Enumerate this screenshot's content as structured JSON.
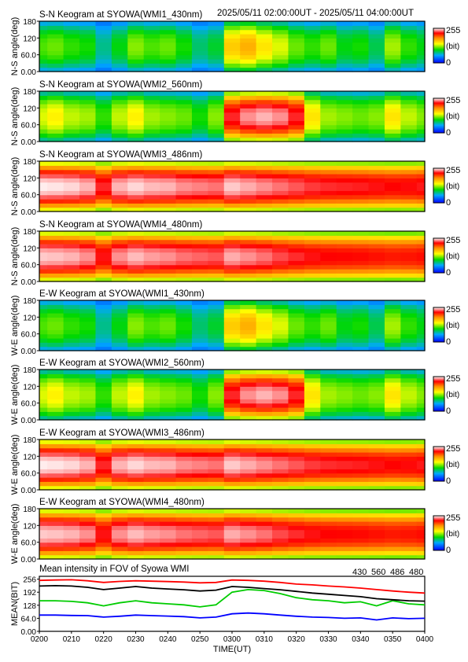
{
  "header": {
    "title": "S-N Keogram at SYOWA(WMI1_430nm)",
    "range": "2025/05/11 02:00:00UT - 2025/05/11 04:00:00UT"
  },
  "colorbar": {
    "max_label": "255",
    "unit_label": "(bit)",
    "min_label": "0"
  },
  "keogram_y_ticks": [
    "180",
    "120",
    "60.0",
    "0.00"
  ],
  "chart_data": [
    {
      "type": "heatmap",
      "id": "sn1",
      "title": "S-N Keogram at SYOWA(WMI1_430nm)",
      "ylabel": "N-S angle(deg)",
      "ylim": [
        0,
        180
      ],
      "palette": "rainbow",
      "x": [
        0,
        5,
        10,
        15,
        20,
        25,
        30,
        35,
        40,
        45,
        50,
        55,
        60,
        65,
        70,
        75,
        80,
        85,
        90,
        95,
        100,
        105,
        110,
        115,
        120
      ],
      "values": [
        110,
        115,
        105,
        100,
        75,
        95,
        120,
        110,
        115,
        100,
        80,
        90,
        160,
        170,
        150,
        135,
        115,
        105,
        115,
        95,
        100,
        85,
        125,
        105,
        95
      ]
    },
    {
      "type": "heatmap",
      "id": "sn2",
      "title": "S-N Keogram at SYOWA(WMI2_560nm)",
      "ylabel": "N-S angle(deg)",
      "ylim": [
        0,
        180
      ],
      "palette": "rainbow",
      "x": [
        0,
        5,
        10,
        15,
        20,
        25,
        30,
        35,
        40,
        45,
        50,
        55,
        60,
        65,
        70,
        75,
        80,
        85,
        90,
        95,
        100,
        105,
        110,
        115,
        120
      ],
      "values": [
        135,
        145,
        130,
        125,
        105,
        130,
        145,
        125,
        120,
        115,
        100,
        120,
        225,
        240,
        245,
        240,
        225,
        150,
        125,
        120,
        115,
        120,
        150,
        130,
        120
      ]
    },
    {
      "type": "heatmap",
      "id": "sn3",
      "title": "S-N Keogram at SYOWA(WMI3_486nm)",
      "ylabel": "N-S angle(deg)",
      "ylim": [
        0,
        180
      ],
      "palette": "rainbow",
      "x": [
        0,
        5,
        10,
        15,
        20,
        25,
        30,
        35,
        40,
        45,
        50,
        55,
        60,
        65,
        70,
        75,
        80,
        85,
        90,
        95,
        100,
        105,
        110,
        115,
        120
      ],
      "values": [
        253,
        252,
        250,
        245,
        225,
        245,
        250,
        246,
        245,
        240,
        238,
        236,
        248,
        244,
        240,
        236,
        232,
        228,
        226,
        225,
        224,
        222,
        220,
        221,
        223
      ]
    },
    {
      "type": "heatmap",
      "id": "sn4",
      "title": "S-N Keogram at SYOWA(WMI4_480nm)",
      "ylabel": "N-S angle(deg)",
      "ylim": [
        0,
        180
      ],
      "palette": "rainbow",
      "x": [
        0,
        5,
        10,
        15,
        20,
        25,
        30,
        35,
        40,
        45,
        50,
        55,
        60,
        65,
        70,
        75,
        80,
        85,
        90,
        95,
        100,
        105,
        110,
        115,
        120
      ],
      "values": [
        248,
        247,
        245,
        240,
        222,
        240,
        246,
        242,
        240,
        236,
        234,
        232,
        244,
        240,
        236,
        230,
        226,
        222,
        220,
        219,
        218,
        216,
        214,
        215,
        217
      ]
    },
    {
      "type": "heatmap",
      "id": "ew1",
      "title": "E-W Keogram at SYOWA(WMI1_430nm)",
      "ylabel": "W-E angle(deg)",
      "ylim": [
        0,
        180
      ],
      "palette": "rainbow",
      "x": [
        0,
        5,
        10,
        15,
        20,
        25,
        30,
        35,
        40,
        45,
        50,
        55,
        60,
        65,
        70,
        75,
        80,
        85,
        90,
        95,
        100,
        105,
        110,
        115,
        120
      ],
      "values": [
        110,
        115,
        105,
        100,
        75,
        95,
        120,
        110,
        115,
        100,
        80,
        90,
        160,
        170,
        150,
        135,
        115,
        105,
        115,
        95,
        100,
        85,
        125,
        105,
        95
      ]
    },
    {
      "type": "heatmap",
      "id": "ew2",
      "title": "E-W Keogram at SYOWA(WMI2_560nm)",
      "ylabel": "W-E angle(deg)",
      "ylim": [
        0,
        180
      ],
      "palette": "rainbow",
      "x": [
        0,
        5,
        10,
        15,
        20,
        25,
        30,
        35,
        40,
        45,
        50,
        55,
        60,
        65,
        70,
        75,
        80,
        85,
        90,
        95,
        100,
        105,
        110,
        115,
        120
      ],
      "values": [
        135,
        145,
        130,
        125,
        105,
        130,
        145,
        125,
        120,
        115,
        100,
        120,
        225,
        240,
        245,
        240,
        225,
        150,
        125,
        120,
        115,
        120,
        150,
        130,
        120
      ]
    },
    {
      "type": "heatmap",
      "id": "ew3",
      "title": "E-W Keogram at SYOWA(WMI3_486nm)",
      "ylabel": "W-E angle(deg)",
      "ylim": [
        0,
        180
      ],
      "palette": "rainbow",
      "x": [
        0,
        5,
        10,
        15,
        20,
        25,
        30,
        35,
        40,
        45,
        50,
        55,
        60,
        65,
        70,
        75,
        80,
        85,
        90,
        95,
        100,
        105,
        110,
        115,
        120
      ],
      "values": [
        253,
        252,
        250,
        245,
        225,
        245,
        250,
        246,
        245,
        240,
        238,
        236,
        248,
        244,
        240,
        236,
        232,
        228,
        226,
        225,
        224,
        222,
        220,
        221,
        223
      ]
    },
    {
      "type": "heatmap",
      "id": "ew4",
      "title": "E-W Keogram at SYOWA(WMI4_480nm)",
      "ylabel": "W-E angle(deg)",
      "ylim": [
        0,
        180
      ],
      "palette": "rainbow",
      "x": [
        0,
        5,
        10,
        15,
        20,
        25,
        30,
        35,
        40,
        45,
        50,
        55,
        60,
        65,
        70,
        75,
        80,
        85,
        90,
        95,
        100,
        105,
        110,
        115,
        120
      ],
      "values": [
        248,
        247,
        245,
        240,
        222,
        240,
        246,
        242,
        240,
        236,
        234,
        232,
        244,
        240,
        236,
        230,
        226,
        222,
        220,
        219,
        218,
        216,
        214,
        215,
        217
      ]
    },
    {
      "type": "line",
      "id": "mean",
      "title": "Mean intensity in FOV of Syowa WMI",
      "xlabel": "TIME(UT)",
      "ylabel": "MEAN(BIT)",
      "ylim": [
        0,
        270
      ],
      "y_ticks": [
        "256",
        "192",
        "128",
        "64.0",
        "0.00"
      ],
      "x_ticks": [
        "0200",
        "0210",
        "0220",
        "0230",
        "0240",
        "0250",
        "0300",
        "0310",
        "0320",
        "0330",
        "0340",
        "0350",
        "0400"
      ],
      "x": [
        0,
        5,
        10,
        15,
        20,
        25,
        30,
        35,
        40,
        45,
        50,
        55,
        60,
        65,
        70,
        75,
        80,
        85,
        90,
        95,
        100,
        105,
        110,
        115,
        120
      ],
      "series": [
        {
          "name": "430",
          "color": "#0000ff",
          "values": [
            80,
            80,
            78,
            77,
            70,
            74,
            80,
            77,
            75,
            72,
            66,
            70,
            86,
            90,
            86,
            80,
            74,
            70,
            68,
            64,
            66,
            56,
            66,
            62,
            64
          ]
        },
        {
          "name": "560",
          "color": "#00cc00",
          "values": [
            150,
            150,
            147,
            140,
            125,
            140,
            150,
            140,
            135,
            130,
            120,
            130,
            192,
            205,
            200,
            185,
            165,
            155,
            150,
            140,
            145,
            125,
            150,
            135,
            130
          ]
        },
        {
          "name": "486",
          "color": "#ff0000",
          "values": [
            250,
            252,
            253,
            248,
            240,
            245,
            248,
            246,
            244,
            242,
            238,
            240,
            252,
            250,
            246,
            240,
            232,
            228,
            222,
            218,
            212,
            205,
            198,
            192,
            188
          ]
        },
        {
          "name": "480",
          "color": "#000000",
          "values": [
            222,
            224,
            222,
            216,
            205,
            212,
            220,
            212,
            208,
            204,
            198,
            202,
            220,
            216,
            210,
            204,
            196,
            188,
            182,
            176,
            170,
            160,
            155,
            150,
            148
          ]
        }
      ]
    }
  ]
}
